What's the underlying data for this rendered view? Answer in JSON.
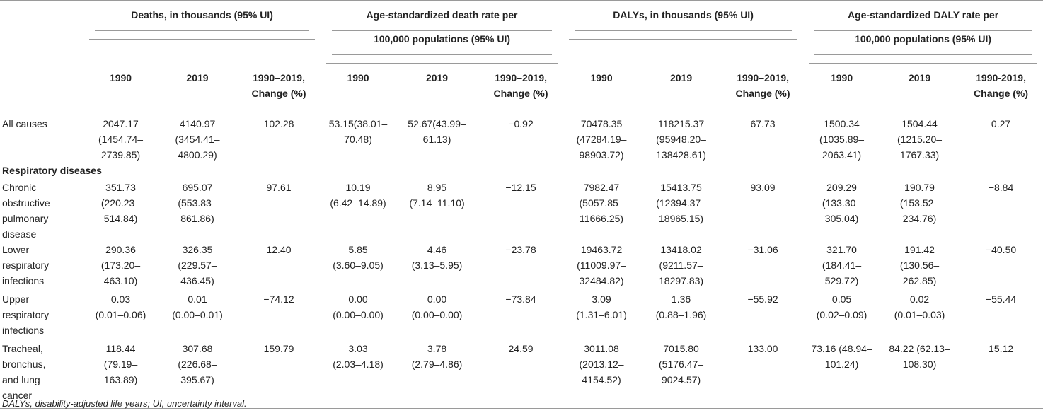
{
  "header": {
    "groups": [
      "Deaths, in thousands (95% UI)",
      "Age-standardized death rate per 100,000 populations (95% UI)",
      "DALYs, in thousands (95% UI)",
      "Age-standardized DALY rate per 100,000 populations (95% UI)"
    ],
    "group_lines": [
      [
        "Deaths, in thousands (95% UI)"
      ],
      [
        "Age-standardized death rate per",
        "100,000 populations (95% UI)"
      ],
      [
        "DALYs, in thousands (95% UI)"
      ],
      [
        "Age-standardized DALY rate per",
        "100,000 populations (95% UI)"
      ]
    ],
    "subheaders": [
      [
        "1990",
        "2019",
        "1990–2019,",
        "Change (%)"
      ],
      [
        "1990",
        "2019",
        "1990–2019,",
        "Change (%)"
      ],
      [
        "1990",
        "2019",
        "1990–2019,",
        "Change (%)"
      ],
      [
        "1990",
        "2019",
        "1990-2019,",
        "Change (%)"
      ]
    ]
  },
  "rows": [
    {
      "label": [
        "All causes"
      ],
      "cells": [
        [
          "2047.17",
          "(1454.74–",
          "2739.85)"
        ],
        [
          "4140.97",
          "(3454.41–",
          "4800.29)"
        ],
        [
          "102.28"
        ],
        [
          "53.15(38.01–",
          "70.48)"
        ],
        [
          "52.67(43.99–",
          "61.13)"
        ],
        [
          "−0.92"
        ],
        [
          "70478.35",
          "(47284.19–",
          "98903.72)"
        ],
        [
          "118215.37",
          "(95948.20–",
          "138428.61)"
        ],
        [
          "67.73"
        ],
        [
          "1500.34",
          "(1035.89–",
          "2063.41)"
        ],
        [
          "1504.44",
          "(1215.20–",
          "1767.33)"
        ],
        [
          "0.27"
        ]
      ]
    },
    {
      "section": "Respiratory diseases"
    },
    {
      "label": [
        "Chronic",
        "obstructive",
        "pulmonary",
        "disease"
      ],
      "cells": [
        [
          "351.73",
          "(220.23–",
          "514.84)"
        ],
        [
          "695.07",
          "(553.83–",
          "861.86)"
        ],
        [
          "97.61"
        ],
        [
          "10.19",
          "(6.42–14.89)"
        ],
        [
          "8.95",
          "(7.14–11.10)"
        ],
        [
          "−12.15"
        ],
        [
          "7982.47",
          "(5057.85–",
          "11666.25)"
        ],
        [
          "15413.75",
          "(12394.37–",
          "18965.15)"
        ],
        [
          "93.09"
        ],
        [
          "209.29",
          "(133.30–",
          "305.04)"
        ],
        [
          "190.79",
          "(153.52–",
          "234.76)"
        ],
        [
          "−8.84"
        ]
      ]
    },
    {
      "label": [
        "Lower",
        "respiratory",
        "infections"
      ],
      "cells": [
        [
          "290.36",
          "(173.20–",
          "463.10)"
        ],
        [
          "326.35",
          "(229.57–",
          "436.45)"
        ],
        [
          "12.40"
        ],
        [
          "5.85",
          "(3.60–9.05)"
        ],
        [
          "4.46",
          "(3.13–5.95)"
        ],
        [
          "−23.78"
        ],
        [
          "19463.72",
          "(11009.97–",
          "32484.82)"
        ],
        [
          "13418.02",
          "(9211.57–",
          "18297.83)"
        ],
        [
          "−31.06"
        ],
        [
          "321.70",
          "(184.41–",
          "529.72)"
        ],
        [
          "191.42",
          "(130.56–",
          "262.85)"
        ],
        [
          "−40.50"
        ]
      ]
    },
    {
      "label": [
        "Upper",
        "respiratory",
        "infections"
      ],
      "cells": [
        [
          "0.03",
          "(0.01–0.06)"
        ],
        [
          "0.01",
          "(0.00–0.01)"
        ],
        [
          "−74.12"
        ],
        [
          "0.00",
          "(0.00–0.00)"
        ],
        [
          "0.00",
          "(0.00–0.00)"
        ],
        [
          "−73.84"
        ],
        [
          "3.09",
          "(1.31–6.01)"
        ],
        [
          "1.36",
          "(0.88–1.96)"
        ],
        [
          "−55.92"
        ],
        [
          "0.05",
          "(0.02–0.09)"
        ],
        [
          "0.02",
          "(0.01–0.03)"
        ],
        [
          "−55.44"
        ]
      ]
    },
    {
      "label": [
        "Tracheal,",
        "bronchus,",
        "and lung",
        "cancer"
      ],
      "cells": [
        [
          "118.44",
          "(79.19–",
          "163.89)"
        ],
        [
          "307.68",
          "(226.68–",
          "395.67)"
        ],
        [
          "159.79"
        ],
        [
          "3.03",
          "(2.03–4.18)"
        ],
        [
          "3.78",
          "(2.79–4.86)"
        ],
        [
          "24.59"
        ],
        [
          "3011.08",
          "(2013.12–",
          "4154.52)"
        ],
        [
          "7015.80",
          "(5176.47–",
          "9024.57)"
        ],
        [
          "133.00"
        ],
        [
          "73.16 (48.94–",
          "101.24)"
        ],
        [
          "84.22 (62.13–",
          "108.30)"
        ],
        [
          "15.12"
        ]
      ]
    }
  ],
  "footnote": "DALYs, disability-adjusted life years; UI, uncertainty interval."
}
